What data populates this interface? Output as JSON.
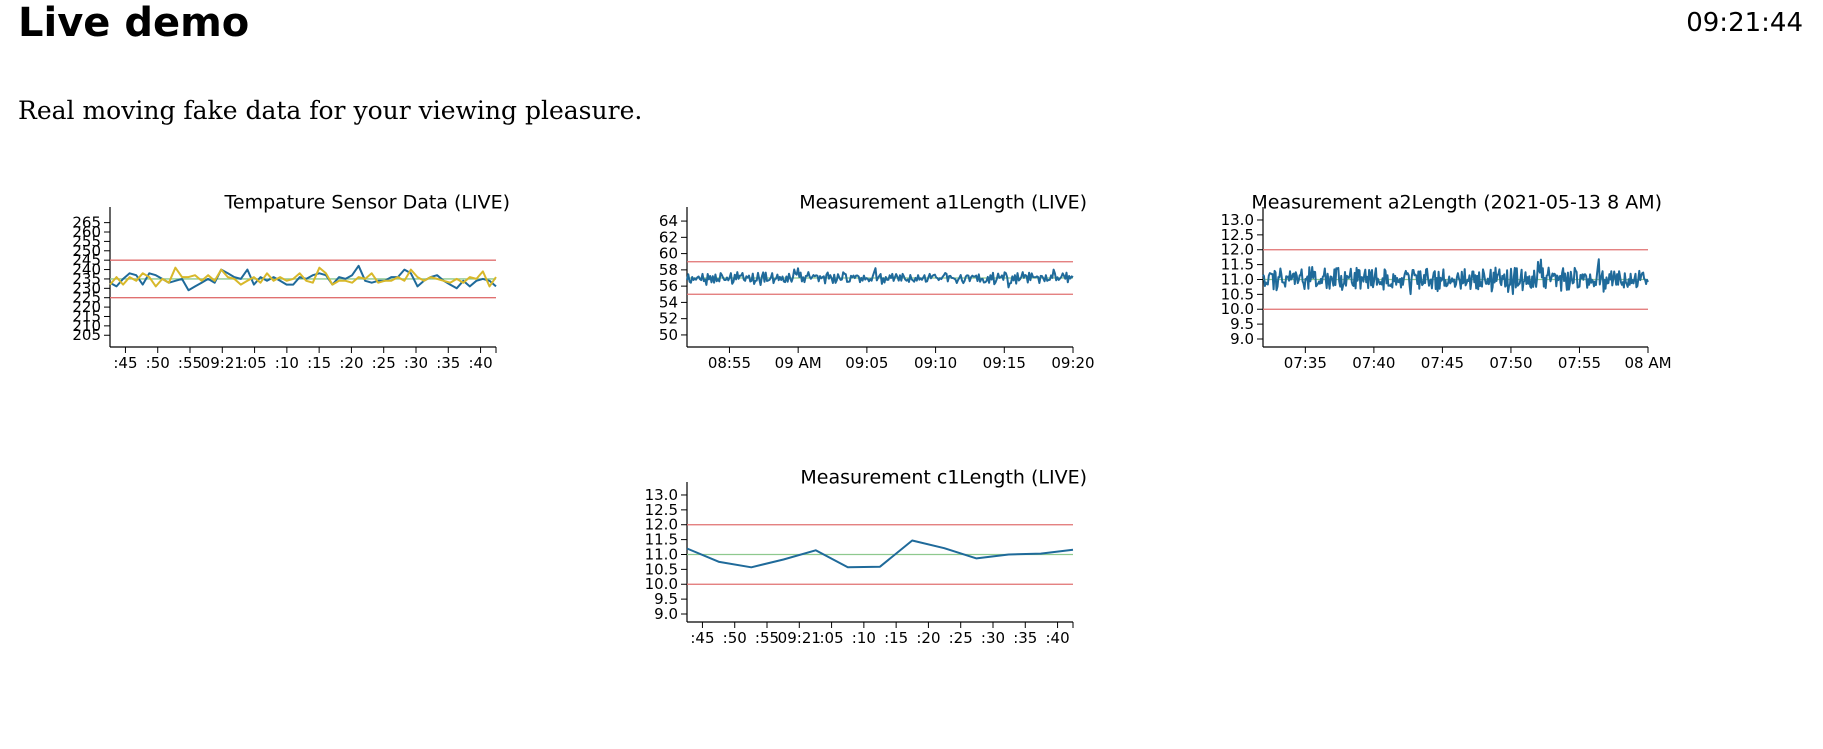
{
  "header": {
    "title": "Live demo",
    "clock": "09:21:44"
  },
  "intro": {
    "text": "Real moving fake data for your viewing pleasure."
  },
  "colors": {
    "series_blue": "#1f6a9a",
    "series_yellow": "#d8b82a",
    "limit_red": "#e07070",
    "target_green": "#8ec98e"
  },
  "chart_data": [
    {
      "type": "line",
      "title": "Tempature Sensor Data (LIVE)",
      "ylim": [
        203,
        268
      ],
      "y_ticks": [
        205,
        210,
        215,
        220,
        225,
        230,
        235,
        240,
        245,
        250,
        255,
        260,
        265
      ],
      "x_tick_labels": [
        ":45",
        ":50",
        ":55",
        "09:21",
        ":05",
        ":10",
        ":15",
        ":20",
        ":25",
        ":30",
        ":35",
        ":40"
      ],
      "limits": {
        "upper": 245,
        "lower": 225,
        "target": 235
      },
      "x_count": 60,
      "series": [
        {
          "color": "#1f6a9a",
          "values": [
            233,
            231,
            235,
            238,
            237,
            232,
            238,
            237,
            235,
            233,
            234,
            235,
            229,
            231,
            233,
            235,
            233,
            240,
            238,
            236,
            235,
            240,
            232,
            236,
            234,
            236,
            234,
            232,
            232,
            236,
            235,
            237,
            238,
            237,
            232,
            236,
            235,
            237,
            242,
            234,
            233,
            234,
            234,
            236,
            236,
            240,
            238,
            231,
            234,
            236,
            237,
            234,
            232,
            230,
            234,
            231,
            234,
            235,
            234,
            231
          ]
        },
        {
          "color": "#d8b82a",
          "values": [
            232,
            236,
            232,
            236,
            234,
            238,
            236,
            231,
            235,
            233,
            241,
            236,
            236,
            237,
            234,
            237,
            234,
            240,
            236,
            235,
            232,
            234,
            236,
            233,
            238,
            234,
            236,
            234,
            235,
            238,
            234,
            233,
            241,
            238,
            232,
            234,
            234,
            233,
            236,
            235,
            238,
            233,
            234,
            234,
            236,
            234,
            240,
            236,
            234,
            236,
            235,
            234,
            233,
            235,
            233,
            236,
            235,
            239,
            231,
            236
          ]
        }
      ]
    },
    {
      "type": "line",
      "title": "Measurement a1Length (LIVE)",
      "ylim": [
        49.5,
        64.5
      ],
      "y_ticks": [
        50,
        52,
        54,
        56,
        58,
        60,
        62,
        64
      ],
      "x_tick_labels": [
        "08:55",
        "09 AM",
        "09:05",
        "09:10",
        "09:15",
        "09:20"
      ],
      "limits": {
        "upper": 59,
        "lower": 55,
        "target": 57
      },
      "x_count": 300,
      "series": [
        {
          "color": "#1f6a9a",
          "center": 57.0,
          "amplitude": 0.8,
          "values": []
        }
      ]
    },
    {
      "type": "line",
      "title": "Measurement a2Length (2021-05-13 8 AM)",
      "ylim": [
        9.0,
        13.1
      ],
      "y_ticks": [
        9.0,
        9.5,
        10.0,
        10.5,
        11.0,
        11.5,
        12.0,
        12.5,
        13.0
      ],
      "x_tick_labels": [
        "07:35",
        "07:40",
        "07:45",
        "07:50",
        "07:55",
        "08 AM"
      ],
      "limits": {
        "upper": 12.0,
        "lower": 10.0,
        "target": 11.0
      },
      "x_count": 400,
      "series": [
        {
          "color": "#1f6a9a",
          "center": 11.0,
          "amplitude": 0.45,
          "values": []
        }
      ]
    },
    {
      "type": "line",
      "title": "Measurement c1Length (LIVE)",
      "ylim": [
        9.0,
        13.1
      ],
      "y_ticks": [
        9.0,
        9.5,
        10.0,
        10.5,
        11.0,
        11.5,
        12.0,
        12.5,
        13.0
      ],
      "x_tick_labels": [
        ":45",
        ":50",
        ":55",
        "09:21",
        ":05",
        ":10",
        ":15",
        ":20",
        ":25",
        ":30",
        ":35",
        ":40"
      ],
      "limits": {
        "upper": 12.0,
        "lower": 10.0,
        "target": 11.0
      },
      "x_count": 13,
      "series": [
        {
          "color": "#1f6a9a",
          "values": [
            11.2,
            10.75,
            10.57,
            10.83,
            11.14,
            10.57,
            10.59,
            11.47,
            11.21,
            10.87,
            11.0,
            11.03,
            11.16
          ]
        }
      ]
    }
  ]
}
